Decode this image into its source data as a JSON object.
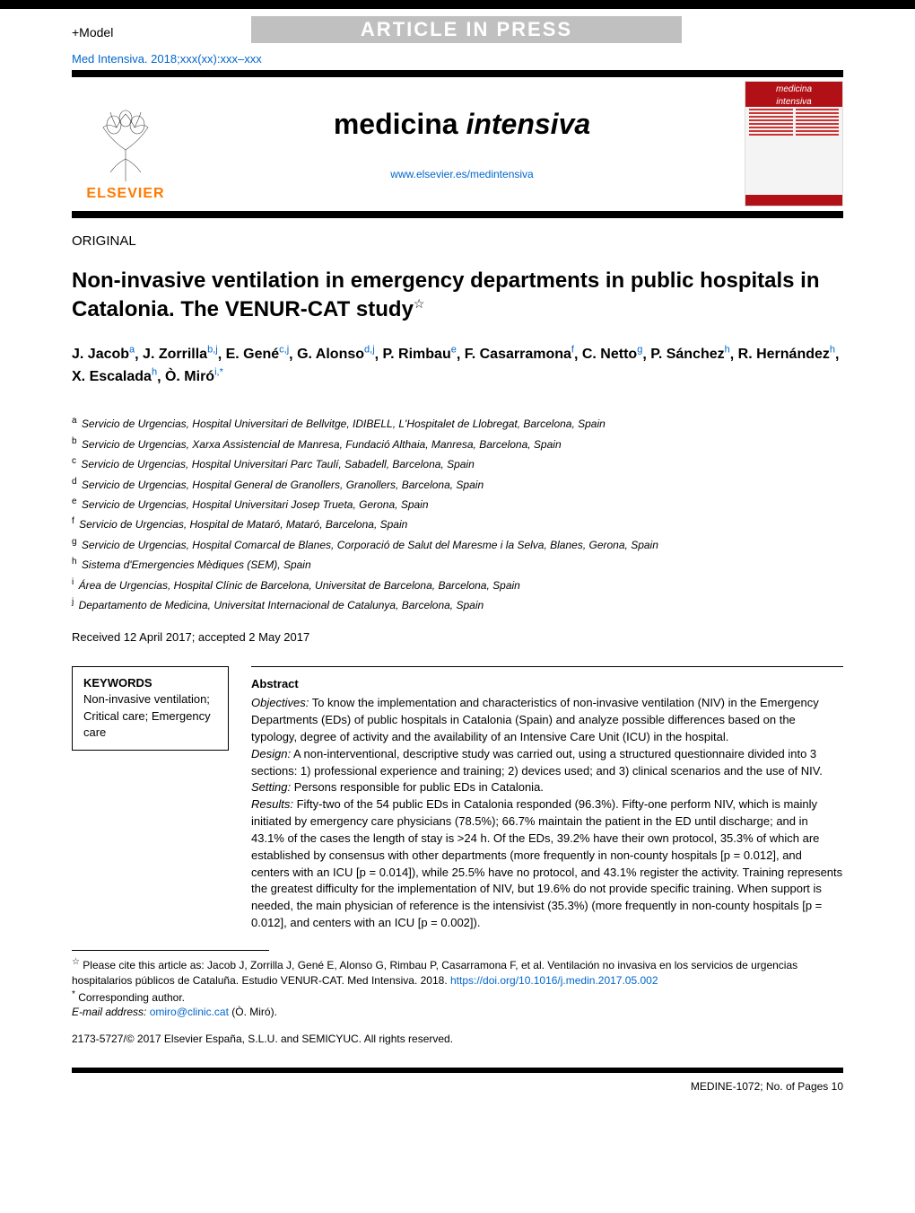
{
  "header": {
    "model_label": "+Model",
    "press_banner": "ARTICLE IN PRESS",
    "citation": "Med Intensiva. 2018;xxx(xx):xxx–xxx",
    "journal_title_a": "medicina ",
    "journal_title_b": "intensiva",
    "journal_url": "www.elsevier.es/medintensiva",
    "elsevier_label": "ELSEVIER",
    "cover_label_a": "medicina",
    "cover_label_b": "intensiva"
  },
  "article": {
    "section_label": "ORIGINAL",
    "title": "Non-invasive ventilation in emergency departments in public hospitals in Catalonia. The VENUR-CAT study",
    "star": "☆"
  },
  "authors": [
    {
      "name": "J. Jacob",
      "aff": "a"
    },
    {
      "name": "J. Zorrilla",
      "aff": "b,j"
    },
    {
      "name": "E. Gené",
      "aff": "c,j"
    },
    {
      "name": "G. Alonso",
      "aff": "d,j"
    },
    {
      "name": "P. Rimbau",
      "aff": "e"
    },
    {
      "name": "F. Casarramona",
      "aff": "f"
    },
    {
      "name": "C. Netto",
      "aff": "g"
    },
    {
      "name": "P. Sánchez",
      "aff": "h"
    },
    {
      "name": "R. Hernández",
      "aff": "h"
    },
    {
      "name": "X. Escalada",
      "aff": "h"
    },
    {
      "name": "Ò. Miró",
      "aff": "i,*"
    }
  ],
  "affiliations": [
    {
      "k": "a",
      "t": "Servicio de Urgencias, Hospital Universitari de Bellvitge, IDIBELL, L'Hospitalet de Llobregat, Barcelona, Spain"
    },
    {
      "k": "b",
      "t": "Servicio de Urgencias, Xarxa Assistencial de Manresa, Fundació Althaia, Manresa, Barcelona, Spain"
    },
    {
      "k": "c",
      "t": "Servicio de Urgencias, Hospital Universitari Parc Taulí, Sabadell, Barcelona, Spain"
    },
    {
      "k": "d",
      "t": "Servicio de Urgencias, Hospital General de Granollers, Granollers, Barcelona, Spain"
    },
    {
      "k": "e",
      "t": "Servicio de Urgencias, Hospital Universitari Josep Trueta, Gerona, Spain"
    },
    {
      "k": "f",
      "t": "Servicio de Urgencias, Hospital de Mataró, Mataró, Barcelona, Spain"
    },
    {
      "k": "g",
      "t": "Servicio de Urgencias, Hospital Comarcal de Blanes, Corporació de Salut del Maresme i la Selva, Blanes, Gerona, Spain"
    },
    {
      "k": "h",
      "t": "Sistema d'Emergencies Mèdiques (SEM), Spain"
    },
    {
      "k": "i",
      "t": "Área de Urgencias, Hospital Clínic de Barcelona, Universitat de Barcelona, Barcelona, Spain"
    },
    {
      "k": "j",
      "t": "Departamento de Medicina, Universitat Internacional de Catalunya, Barcelona, Spain"
    }
  ],
  "dates": "Received 12 April 2017; accepted 2 May 2017",
  "keywords": {
    "header": "KEYWORDS",
    "items": "Non-invasive ventilation; Critical care; Emergency care"
  },
  "abstract": {
    "header": "Abstract",
    "objectives_label": "Objectives:",
    "objectives": " To know the implementation and characteristics of non-invasive ventilation (NIV) in the Emergency Departments (EDs) of public hospitals in Catalonia (Spain) and analyze possible differences based on the typology, degree of activity and the availability of an Intensive Care Unit (ICU) in the hospital.",
    "design_label": "Design:",
    "design": " A non-interventional, descriptive study was carried out, using a structured questionnaire divided into 3 sections: 1) professional experience and training; 2) devices used; and 3) clinical scenarios and the use of NIV.",
    "setting_label": "Setting:",
    "setting": " Persons responsible for public EDs in Catalonia.",
    "results_label": "Results:",
    "results": " Fifty-two of the 54 public EDs in Catalonia responded (96.3%). Fifty-one perform NIV, which is mainly initiated by emergency care physicians (78.5%); 66.7% maintain the patient in the ED until discharge; and in 43.1% of the cases the length of stay is >24 h. Of the EDs, 39.2% have their own protocol, 35.3% of which are established by consensus with other departments (more frequently in non-county hospitals [p = 0.012], and centers with an ICU [p = 0.014]), while 25.5% have no protocol, and 43.1% register the activity. Training represents the greatest difficulty for the implementation of NIV, but 19.6% do not provide specific training. When support is needed, the main physician of reference is the intensivist (35.3%) (more frequently in non-county hospitals [p = 0.012], and centers with an ICU [p = 0.002])."
  },
  "footnotes": {
    "cite_star": "☆",
    "cite": " Please cite this article as: Jacob J, Zorrilla J, Gené E, Alonso G, Rimbau P, Casarramona F, et al. Ventilación no invasiva en los servicios de urgencias hospitalarios públicos de Cataluña. Estudio VENUR-CAT. Med Intensiva. 2018. ",
    "cite_doi": "https://doi.org/10.1016/j.medin.2017.05.002",
    "corr_star": "*",
    "corr": " Corresponding author.",
    "email_label": "E-mail address: ",
    "email": "omiro@clinic.cat",
    "email_tail": " (Ò. Miró)."
  },
  "copyright": "2173-5727/© 2017 Elsevier España, S.L.U. and SEMICYUC. All rights reserved.",
  "footer": {
    "idline": "MEDINE-1072;   No. of Pages 10"
  },
  "colors": {
    "link": "#0066cc",
    "elsevier": "#ff7a00",
    "cover_red": "#b11116",
    "black": "#000000",
    "banner_bg": "#c0c0c0"
  }
}
